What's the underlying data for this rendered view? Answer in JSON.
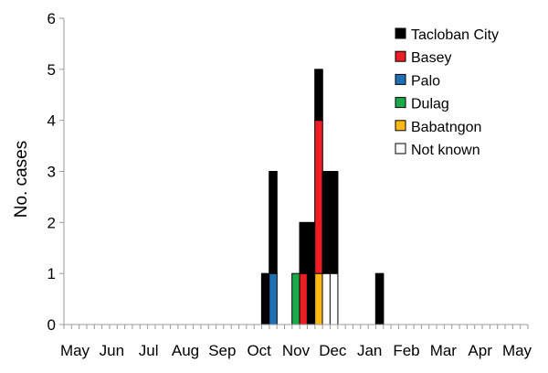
{
  "chart_data": {
    "type": "bar",
    "stacked": true,
    "ylabel": "No. cases",
    "ylim": [
      0,
      6
    ],
    "yticks": [
      0,
      1,
      2,
      3,
      4,
      5,
      6
    ],
    "x_tick_labels": [
      "May",
      "Jun",
      "Jul",
      "Aug",
      "Sep",
      "Oct",
      "Nov",
      "Dec",
      "Jan",
      "Feb",
      "Mar",
      "Apr",
      "May"
    ],
    "grid": false,
    "legend_position": "top-right",
    "series": [
      {
        "name": "Tacloban City",
        "color": "#000000"
      },
      {
        "name": "Basey",
        "color": "#ee1c25"
      },
      {
        "name": "Palo",
        "color": "#1f6fb5"
      },
      {
        "name": "Dulag",
        "color": "#1aaa4b"
      },
      {
        "name": "Babatngon",
        "color": "#fdb913"
      },
      {
        "name": "Not known",
        "color": "#ffffff"
      }
    ],
    "bars": [
      {
        "week": 26,
        "stack": [
          {
            "series": "Tacloban City",
            "value": 1
          }
        ]
      },
      {
        "week": 27,
        "stack": [
          {
            "series": "Palo",
            "value": 1
          },
          {
            "series": "Tacloban City",
            "value": 2
          }
        ]
      },
      {
        "week": 30,
        "stack": [
          {
            "series": "Dulag",
            "value": 1
          }
        ]
      },
      {
        "week": 31,
        "stack": [
          {
            "series": "Basey",
            "value": 1
          },
          {
            "series": "Tacloban City",
            "value": 1
          }
        ]
      },
      {
        "week": 32,
        "stack": [
          {
            "series": "Tacloban City",
            "value": 2
          }
        ]
      },
      {
        "week": 33,
        "stack": [
          {
            "series": "Babatngon",
            "value": 1
          },
          {
            "series": "Basey",
            "value": 3
          },
          {
            "series": "Tacloban City",
            "value": 1
          }
        ]
      },
      {
        "week": 34,
        "stack": [
          {
            "series": "Not known",
            "value": 1
          },
          {
            "series": "Tacloban City",
            "value": 2
          }
        ]
      },
      {
        "week": 35,
        "stack": [
          {
            "series": "Not known",
            "value": 1
          },
          {
            "series": "Tacloban City",
            "value": 2
          }
        ]
      },
      {
        "week": 41,
        "stack": [
          {
            "series": "Tacloban City",
            "value": 1
          }
        ]
      }
    ]
  }
}
